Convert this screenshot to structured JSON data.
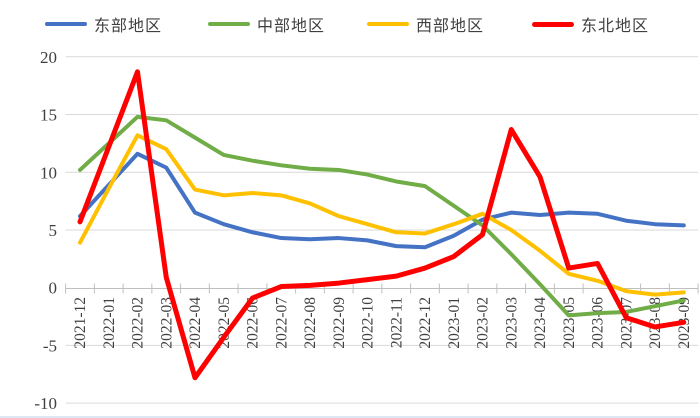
{
  "chart_data": {
    "type": "line",
    "title": "",
    "xlabel": "",
    "ylabel": "",
    "categories": [
      "2021-12",
      "2022-01",
      "2022-02",
      "2022-03",
      "2022-04",
      "2022-05",
      "2022-06",
      "2022-07",
      "2022-08",
      "2022-09",
      "2022-10",
      "2022-11",
      "2022-12",
      "2023-01",
      "2023-02",
      "2023-03",
      "2023-04",
      "2023-05",
      "2023-06",
      "2023-07",
      "2023-08",
      "2023-09"
    ],
    "series": [
      {
        "key": "east",
        "name": "东部地区",
        "color": "#4472C4",
        "line_width": 4,
        "values": [
          6.2,
          8.9,
          11.6,
          10.4,
          6.5,
          5.5,
          4.8,
          4.3,
          4.2,
          4.3,
          4.1,
          3.6,
          3.5,
          4.5,
          5.9,
          6.5,
          6.3,
          6.5,
          6.4,
          5.8,
          5.5,
          5.4
        ]
      },
      {
        "key": "central",
        "name": "中部地区",
        "color": "#70AD47",
        "line_width": 4,
        "values": [
          10.2,
          12.5,
          14.8,
          14.5,
          13.0,
          11.5,
          11.0,
          10.6,
          10.3,
          10.2,
          9.8,
          9.2,
          8.8,
          7.1,
          5.4,
          2.9,
          0.3,
          -2.4,
          -2.2,
          -2.1,
          -1.6,
          -1.1
        ]
      },
      {
        "key": "west",
        "name": "西部地区",
        "color": "#FFC000",
        "line_width": 4,
        "values": [
          3.9,
          8.6,
          13.2,
          12.0,
          8.5,
          8.0,
          8.2,
          8.0,
          7.3,
          6.2,
          5.5,
          4.8,
          4.7,
          5.5,
          6.4,
          5.0,
          3.2,
          1.2,
          0.6,
          -0.3,
          -0.6,
          -0.4
        ]
      },
      {
        "key": "northeast",
        "name": "东北地区",
        "color": "#FF0000",
        "line_width": 5,
        "values": [
          5.7,
          12.2,
          18.7,
          0.9,
          -7.8,
          -4.3,
          -0.9,
          0.1,
          0.2,
          0.4,
          0.7,
          1.0,
          1.7,
          2.7,
          4.6,
          13.7,
          9.6,
          1.7,
          2.1,
          -2.6,
          -3.4,
          -3.0
        ]
      }
    ],
    "ylim": [
      -10,
      20
    ],
    "ytick_interval": 5,
    "yticks": [
      20,
      15,
      10,
      5,
      0,
      -5,
      -10
    ],
    "grid": true,
    "legend_position": "top",
    "gridline_color": "#d9d9d9",
    "axis_color": "#bfbfbf",
    "axis_label_color": "#404040",
    "markers": false
  }
}
